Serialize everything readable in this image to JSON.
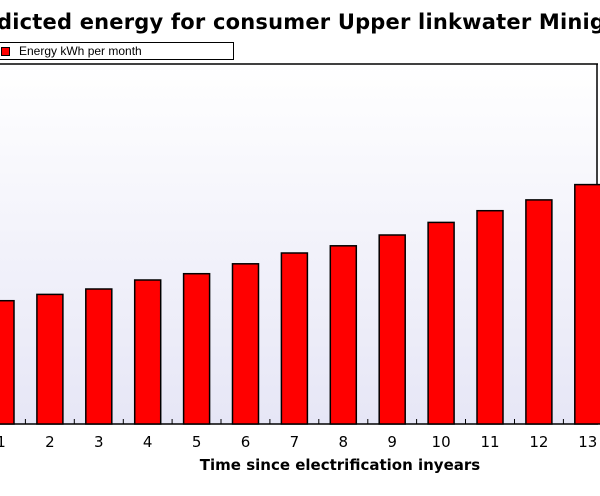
{
  "chart_data": {
    "type": "bar",
    "title": "dicted energy for consumer Upper linkwater Minig",
    "xlabel": "Time since electrification inyears",
    "ylabel": "",
    "series": [
      {
        "name": "Energy kWh per month",
        "values": [
          137,
          144,
          150,
          160,
          167,
          178,
          190,
          198,
          210,
          224,
          237,
          249,
          266
        ]
      }
    ],
    "categories": [
      "1",
      "2",
      "3",
      "4",
      "5",
      "6",
      "7",
      "8",
      "9",
      "10",
      "11",
      "12",
      "13"
    ],
    "ylim": [
      0,
      400
    ],
    "grid": false,
    "legend": "top-left",
    "colors": {
      "bar": "#ff0000",
      "plot_background": "#e8e8f6"
    }
  }
}
